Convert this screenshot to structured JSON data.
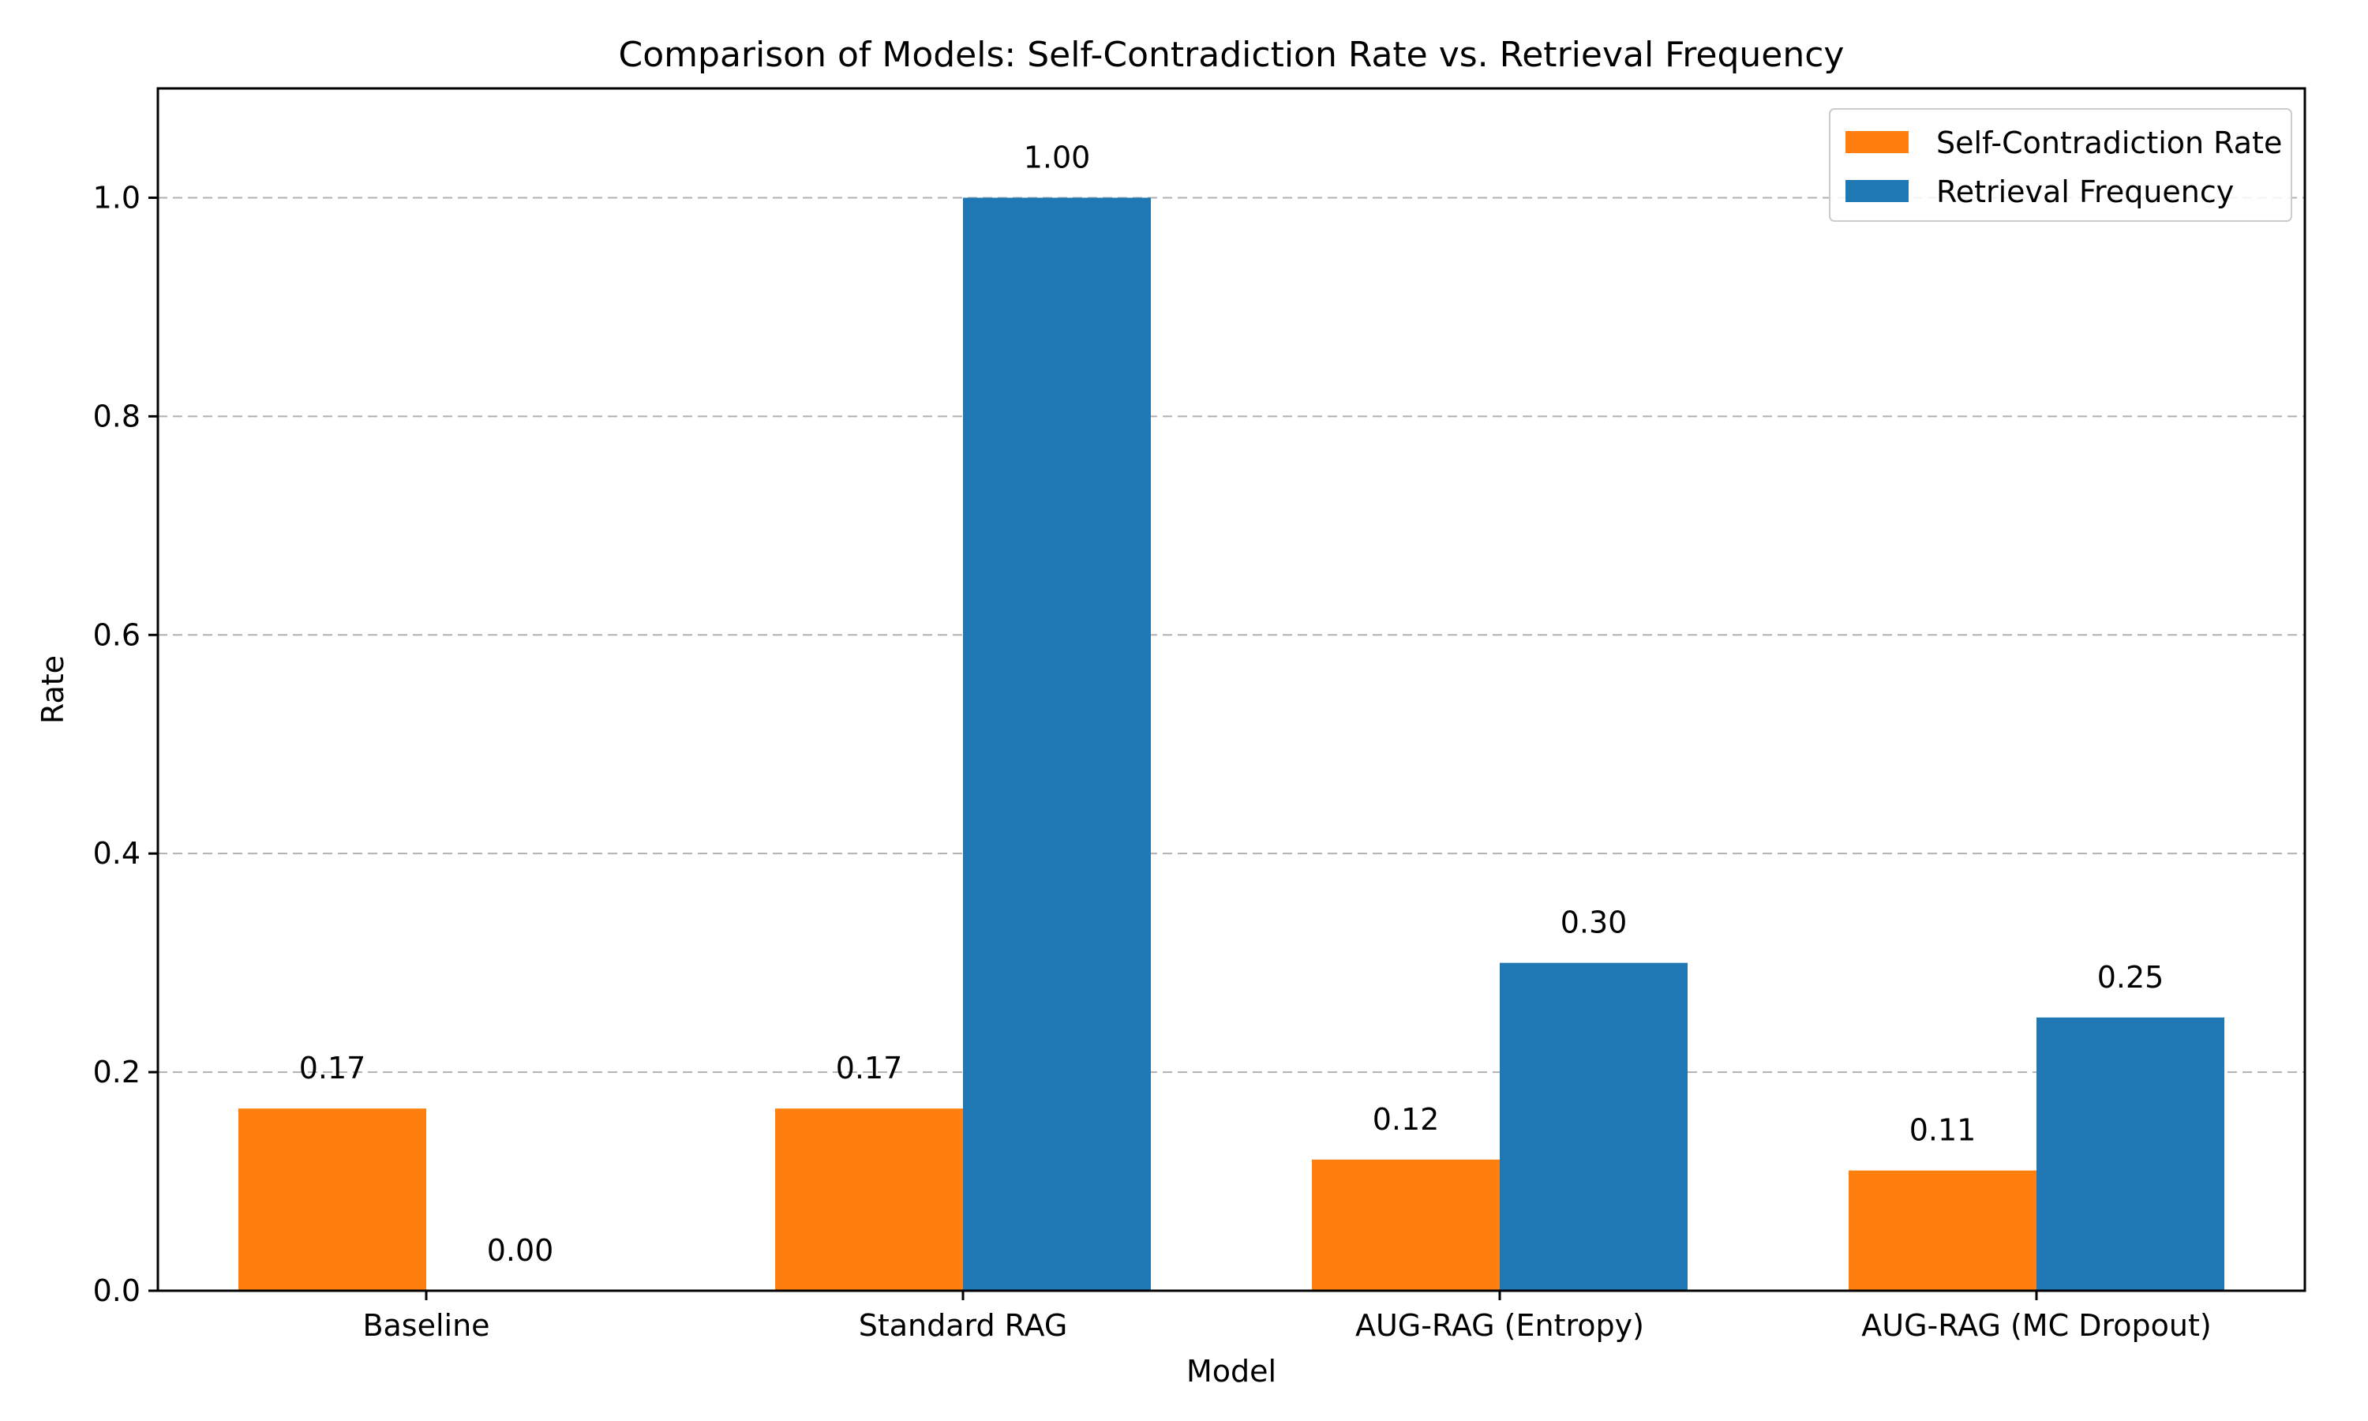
{
  "chart_data": {
    "type": "bar",
    "title": "Comparison of Models: Self-Contradiction Rate vs. Retrieval Frequency",
    "xlabel": "Model",
    "ylabel": "Rate",
    "categories": [
      "Baseline",
      "Standard RAG",
      "AUG-RAG (Entropy)",
      "AUG-RAG (MC Dropout)"
    ],
    "series": [
      {
        "name": "Self-Contradiction Rate",
        "color": "#ff7f0e",
        "values": [
          0.1667,
          0.1667,
          0.12,
          0.11
        ],
        "labels": [
          "0.17",
          "0.17",
          "0.12",
          "0.11"
        ]
      },
      {
        "name": "Retrieval Frequency",
        "color": "#1f77b4",
        "values": [
          0.0,
          1.0,
          0.3,
          0.25
        ],
        "labels": [
          "0.00",
          "1.00",
          "0.30",
          "0.25"
        ]
      }
    ],
    "ylim": [
      0,
      1.1
    ],
    "yticks": [
      0.0,
      0.2,
      0.4,
      0.6,
      0.8,
      1.0
    ],
    "ytick_labels": [
      "0.0",
      "0.2",
      "0.4",
      "0.6",
      "0.8",
      "1.0"
    ],
    "grid": "y, dashed",
    "legend_position": "top-right"
  }
}
